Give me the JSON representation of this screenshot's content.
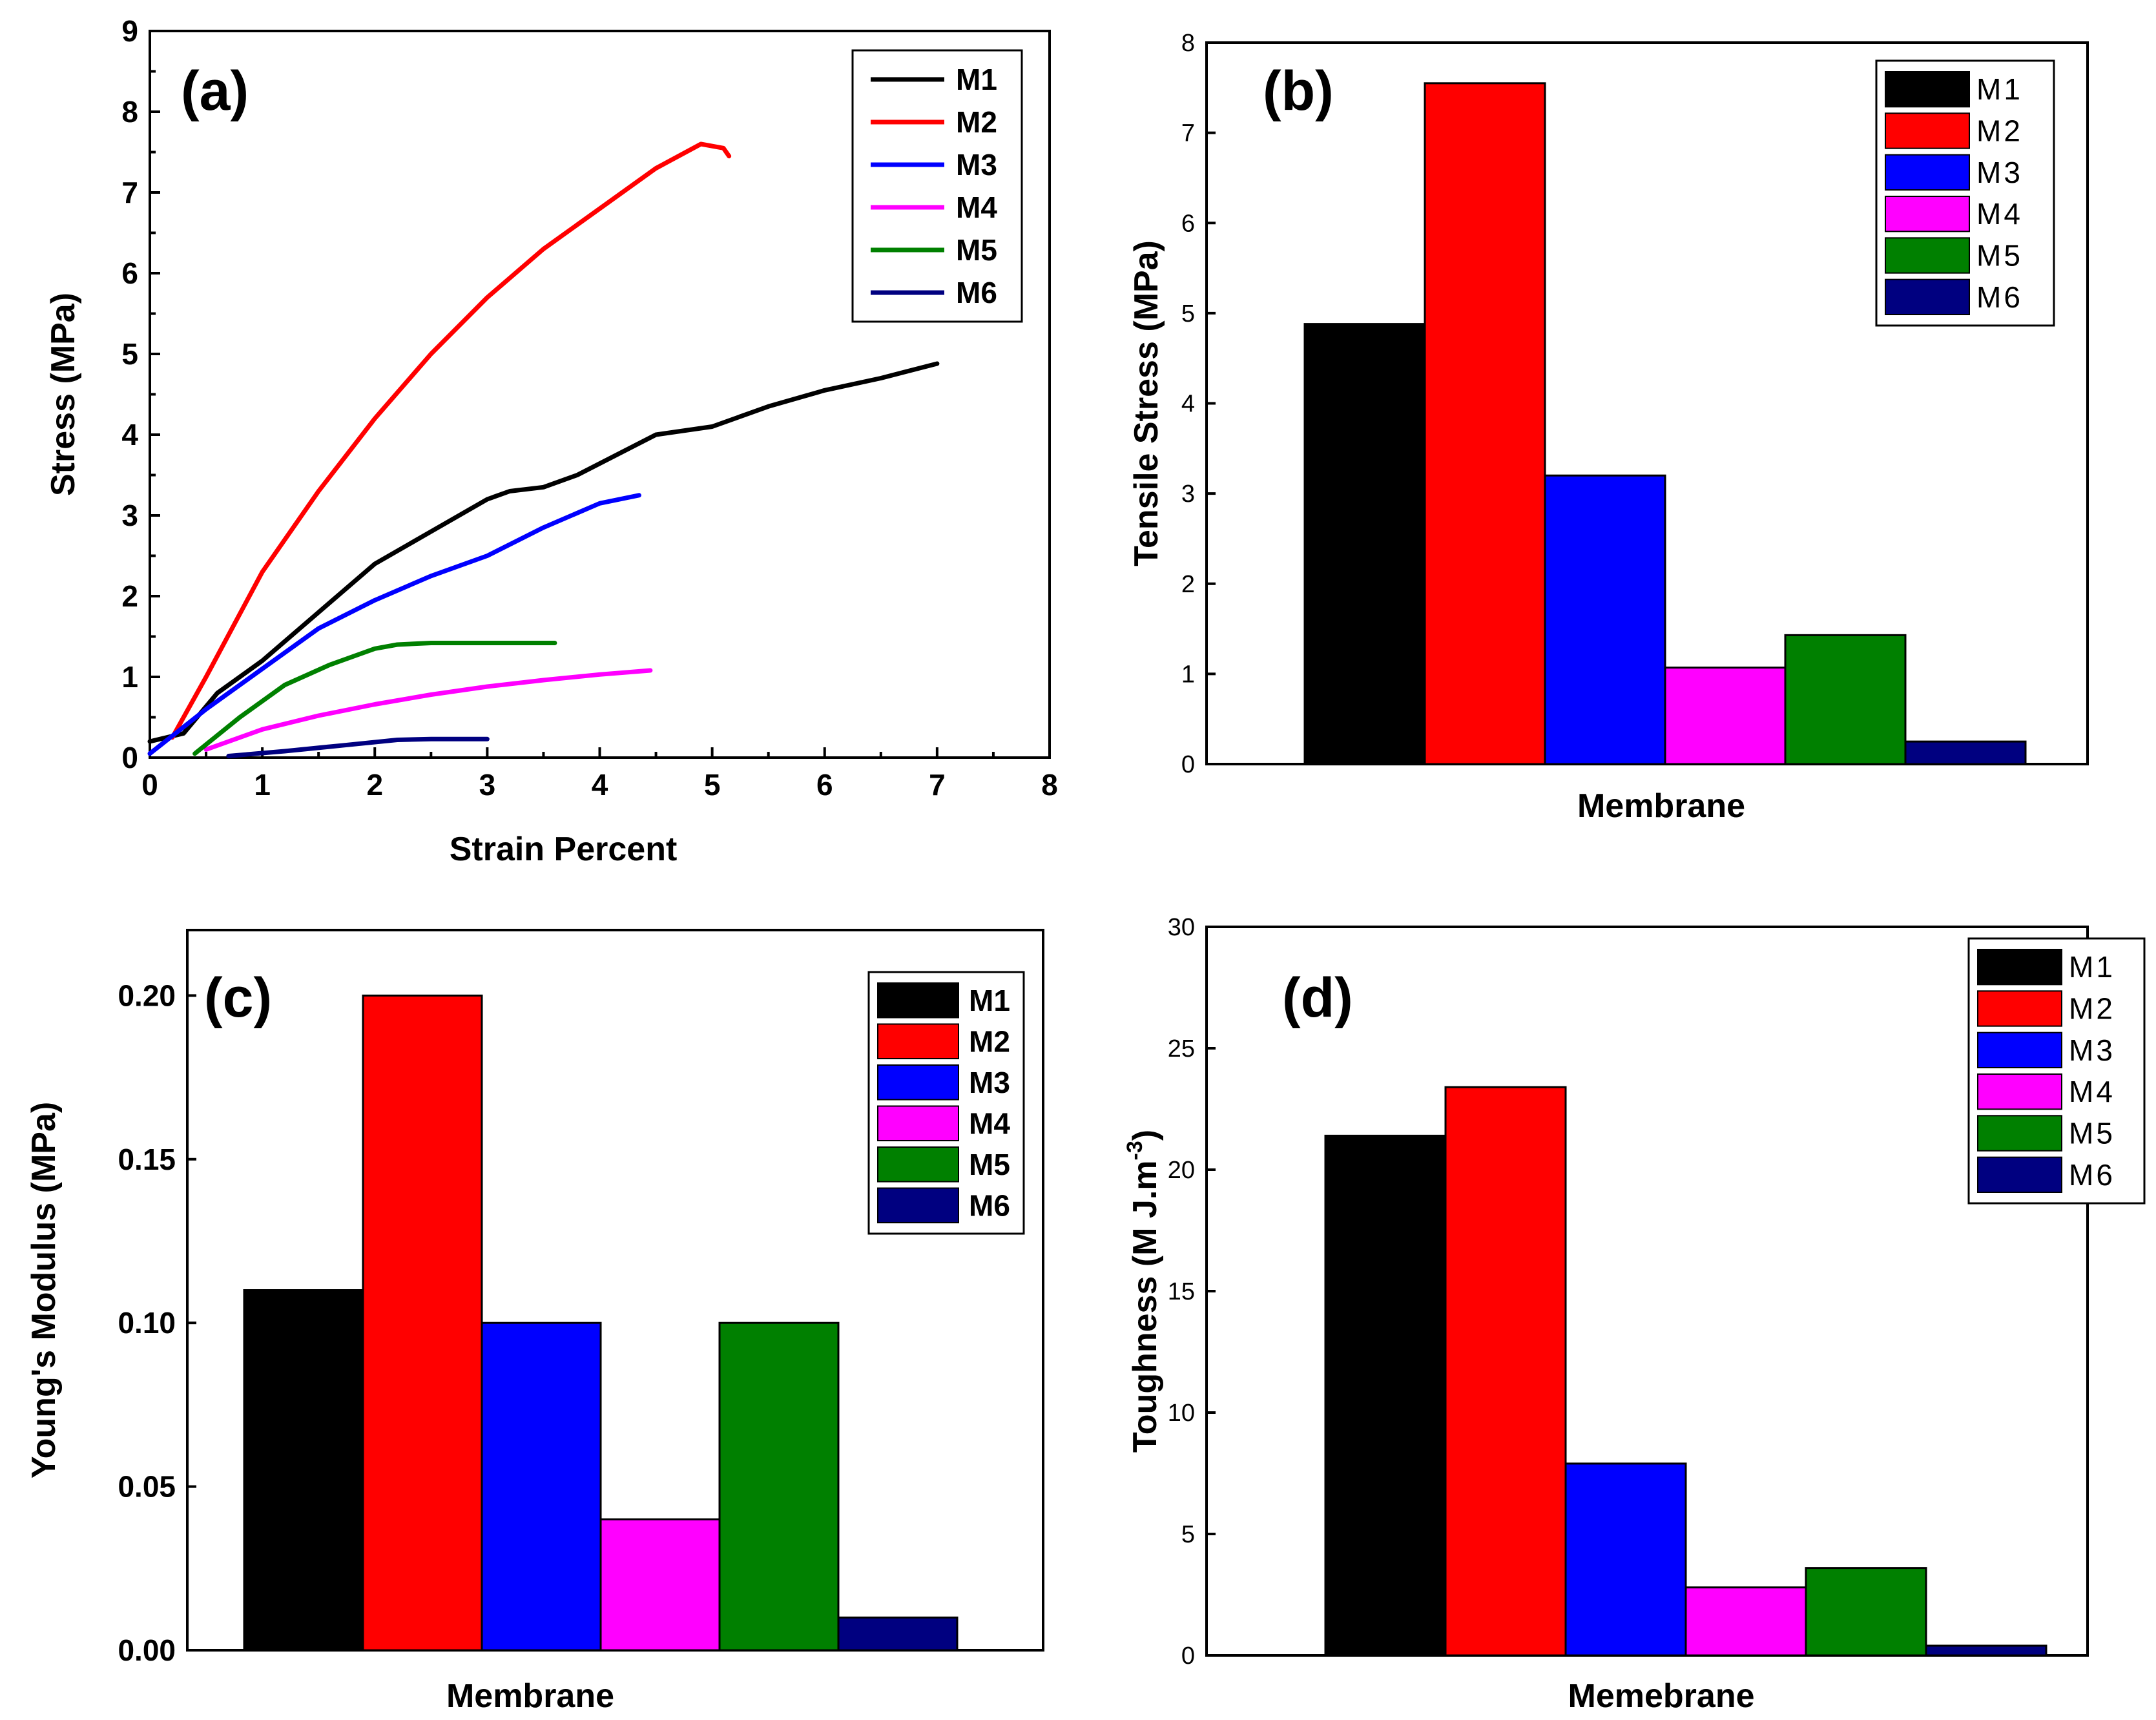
{
  "colors": {
    "M1": "#000000",
    "M2": "#ff0000",
    "M3": "#0000ff",
    "M4": "#ff00ff",
    "M5": "#008000",
    "M6": "#000080"
  },
  "chart_data": [
    {
      "panel": "(a)",
      "type": "line",
      "xlabel": "Strain Percent",
      "ylabel": "Stress (MPa)",
      "xlim": [
        0,
        8
      ],
      "ylim": [
        0,
        9
      ],
      "xticks": [
        "0",
        "1",
        "2",
        "3",
        "4",
        "5",
        "6",
        "7",
        "8"
      ],
      "yticks": [
        "0",
        "1",
        "2",
        "3",
        "4",
        "5",
        "6",
        "7",
        "8",
        "9"
      ],
      "legend": "top-right",
      "series": [
        {
          "name": "M1",
          "x": [
            0,
            0.3,
            0.6,
            1.0,
            1.5,
            2.0,
            2.5,
            3.0,
            3.2,
            3.5,
            3.8,
            4.5,
            5.0,
            5.5,
            6.0,
            6.5,
            7.0
          ],
          "y": [
            0.2,
            0.3,
            0.8,
            1.2,
            1.8,
            2.4,
            2.8,
            3.2,
            3.3,
            3.35,
            3.5,
            4.0,
            4.1,
            4.35,
            4.55,
            4.7,
            4.88
          ]
        },
        {
          "name": "M2",
          "x": [
            0.2,
            0.5,
            1.0,
            1.5,
            2.0,
            2.5,
            3.0,
            3.5,
            4.0,
            4.5,
            4.9,
            5.1,
            5.15
          ],
          "y": [
            0.25,
            1.0,
            2.3,
            3.3,
            4.2,
            5.0,
            5.7,
            6.3,
            6.8,
            7.3,
            7.6,
            7.55,
            7.45
          ]
        },
        {
          "name": "M3",
          "x": [
            0,
            0.5,
            1.0,
            1.5,
            2.0,
            2.5,
            3.0,
            3.5,
            4.0,
            4.35
          ],
          "y": [
            0.05,
            0.6,
            1.1,
            1.6,
            1.95,
            2.25,
            2.5,
            2.85,
            3.15,
            3.25
          ]
        },
        {
          "name": "M4",
          "x": [
            0.5,
            1.0,
            1.5,
            2.0,
            2.5,
            3.0,
            3.5,
            4.0,
            4.45
          ],
          "y": [
            0.1,
            0.35,
            0.52,
            0.66,
            0.78,
            0.88,
            0.96,
            1.03,
            1.08
          ]
        },
        {
          "name": "M5",
          "x": [
            0.4,
            0.8,
            1.2,
            1.6,
            2.0,
            2.2,
            2.5,
            3.0,
            3.6
          ],
          "y": [
            0.05,
            0.5,
            0.9,
            1.15,
            1.35,
            1.4,
            1.42,
            1.42,
            1.42
          ]
        },
        {
          "name": "M6",
          "x": [
            0.7,
            1.2,
            1.7,
            2.2,
            2.5,
            3.0
          ],
          "y": [
            0.02,
            0.08,
            0.15,
            0.22,
            0.23,
            0.23
          ]
        }
      ]
    },
    {
      "panel": "(b)",
      "type": "bar",
      "xlabel": "Membrane",
      "ylabel": "Tensile Stress (MPa)",
      "ylim": [
        0,
        8
      ],
      "yticks": [
        "0",
        "1",
        "2",
        "3",
        "4",
        "5",
        "6",
        "7",
        "8"
      ],
      "categories": [
        "M1",
        "M2",
        "M3",
        "M4",
        "M5",
        "M6"
      ],
      "values": [
        4.88,
        7.55,
        3.2,
        1.07,
        1.43,
        0.25
      ],
      "legend": "top-right"
    },
    {
      "panel": "(c)",
      "type": "bar",
      "xlabel": "Membrane",
      "ylabel": "Young's Modulus (MPa)",
      "ylim": [
        0,
        0.22
      ],
      "yticks": [
        "0.00",
        "0.05",
        "0.10",
        "0.15",
        "0.20"
      ],
      "categories": [
        "M1",
        "M2",
        "M3",
        "M4",
        "M5",
        "M6"
      ],
      "values": [
        0.11,
        0.2,
        0.1,
        0.04,
        0.1,
        0.01
      ],
      "legend": "top-right"
    },
    {
      "panel": "(d)",
      "type": "bar",
      "xlabel": "Memebrane",
      "ylabel": "Toughness (M J.m",
      "ylabel_sup": "-3",
      "ylabel_end": ")",
      "ylim": [
        0,
        30
      ],
      "yticks": [
        "0",
        "5",
        "10",
        "15",
        "20",
        "25",
        "30"
      ],
      "categories": [
        "M1",
        "M2",
        "M3",
        "M4",
        "M5",
        "M6"
      ],
      "values": [
        21.4,
        23.4,
        7.9,
        2.8,
        3.6,
        0.4
      ],
      "legend": "top-right"
    }
  ]
}
